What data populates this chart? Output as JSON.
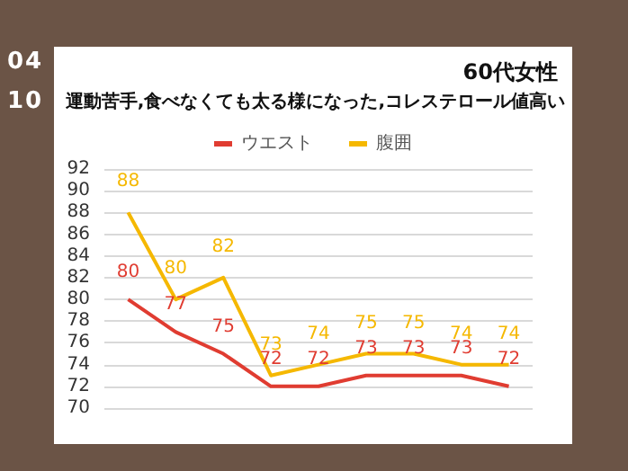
{
  "chart_data": {
    "type": "line",
    "title": "60代女性",
    "subtitle": "運動苦手,食べなくても太る様になった,コレステロール値高い",
    "annotations": [
      "04",
      "10"
    ],
    "categories": [
      null,
      null,
      null,
      null,
      null,
      null,
      null,
      null,
      null
    ],
    "series": [
      {
        "name": "ウエスト",
        "color": "#e03c31",
        "values": [
          80,
          77,
          75,
          72,
          72,
          73,
          73,
          73,
          72
        ]
      },
      {
        "name": "腹囲",
        "color": "#f5b800",
        "values": [
          88,
          80,
          82,
          73,
          74,
          75,
          75,
          74,
          74
        ]
      }
    ],
    "ylim": [
      70,
      92
    ],
    "yticks": [
      70,
      72,
      74,
      76,
      78,
      80,
      82,
      84,
      86,
      88,
      90,
      92
    ],
    "grid": "y",
    "legend": "top",
    "marker": "none",
    "line_style": "solid",
    "data_labels": true,
    "tick_labels": "y"
  }
}
